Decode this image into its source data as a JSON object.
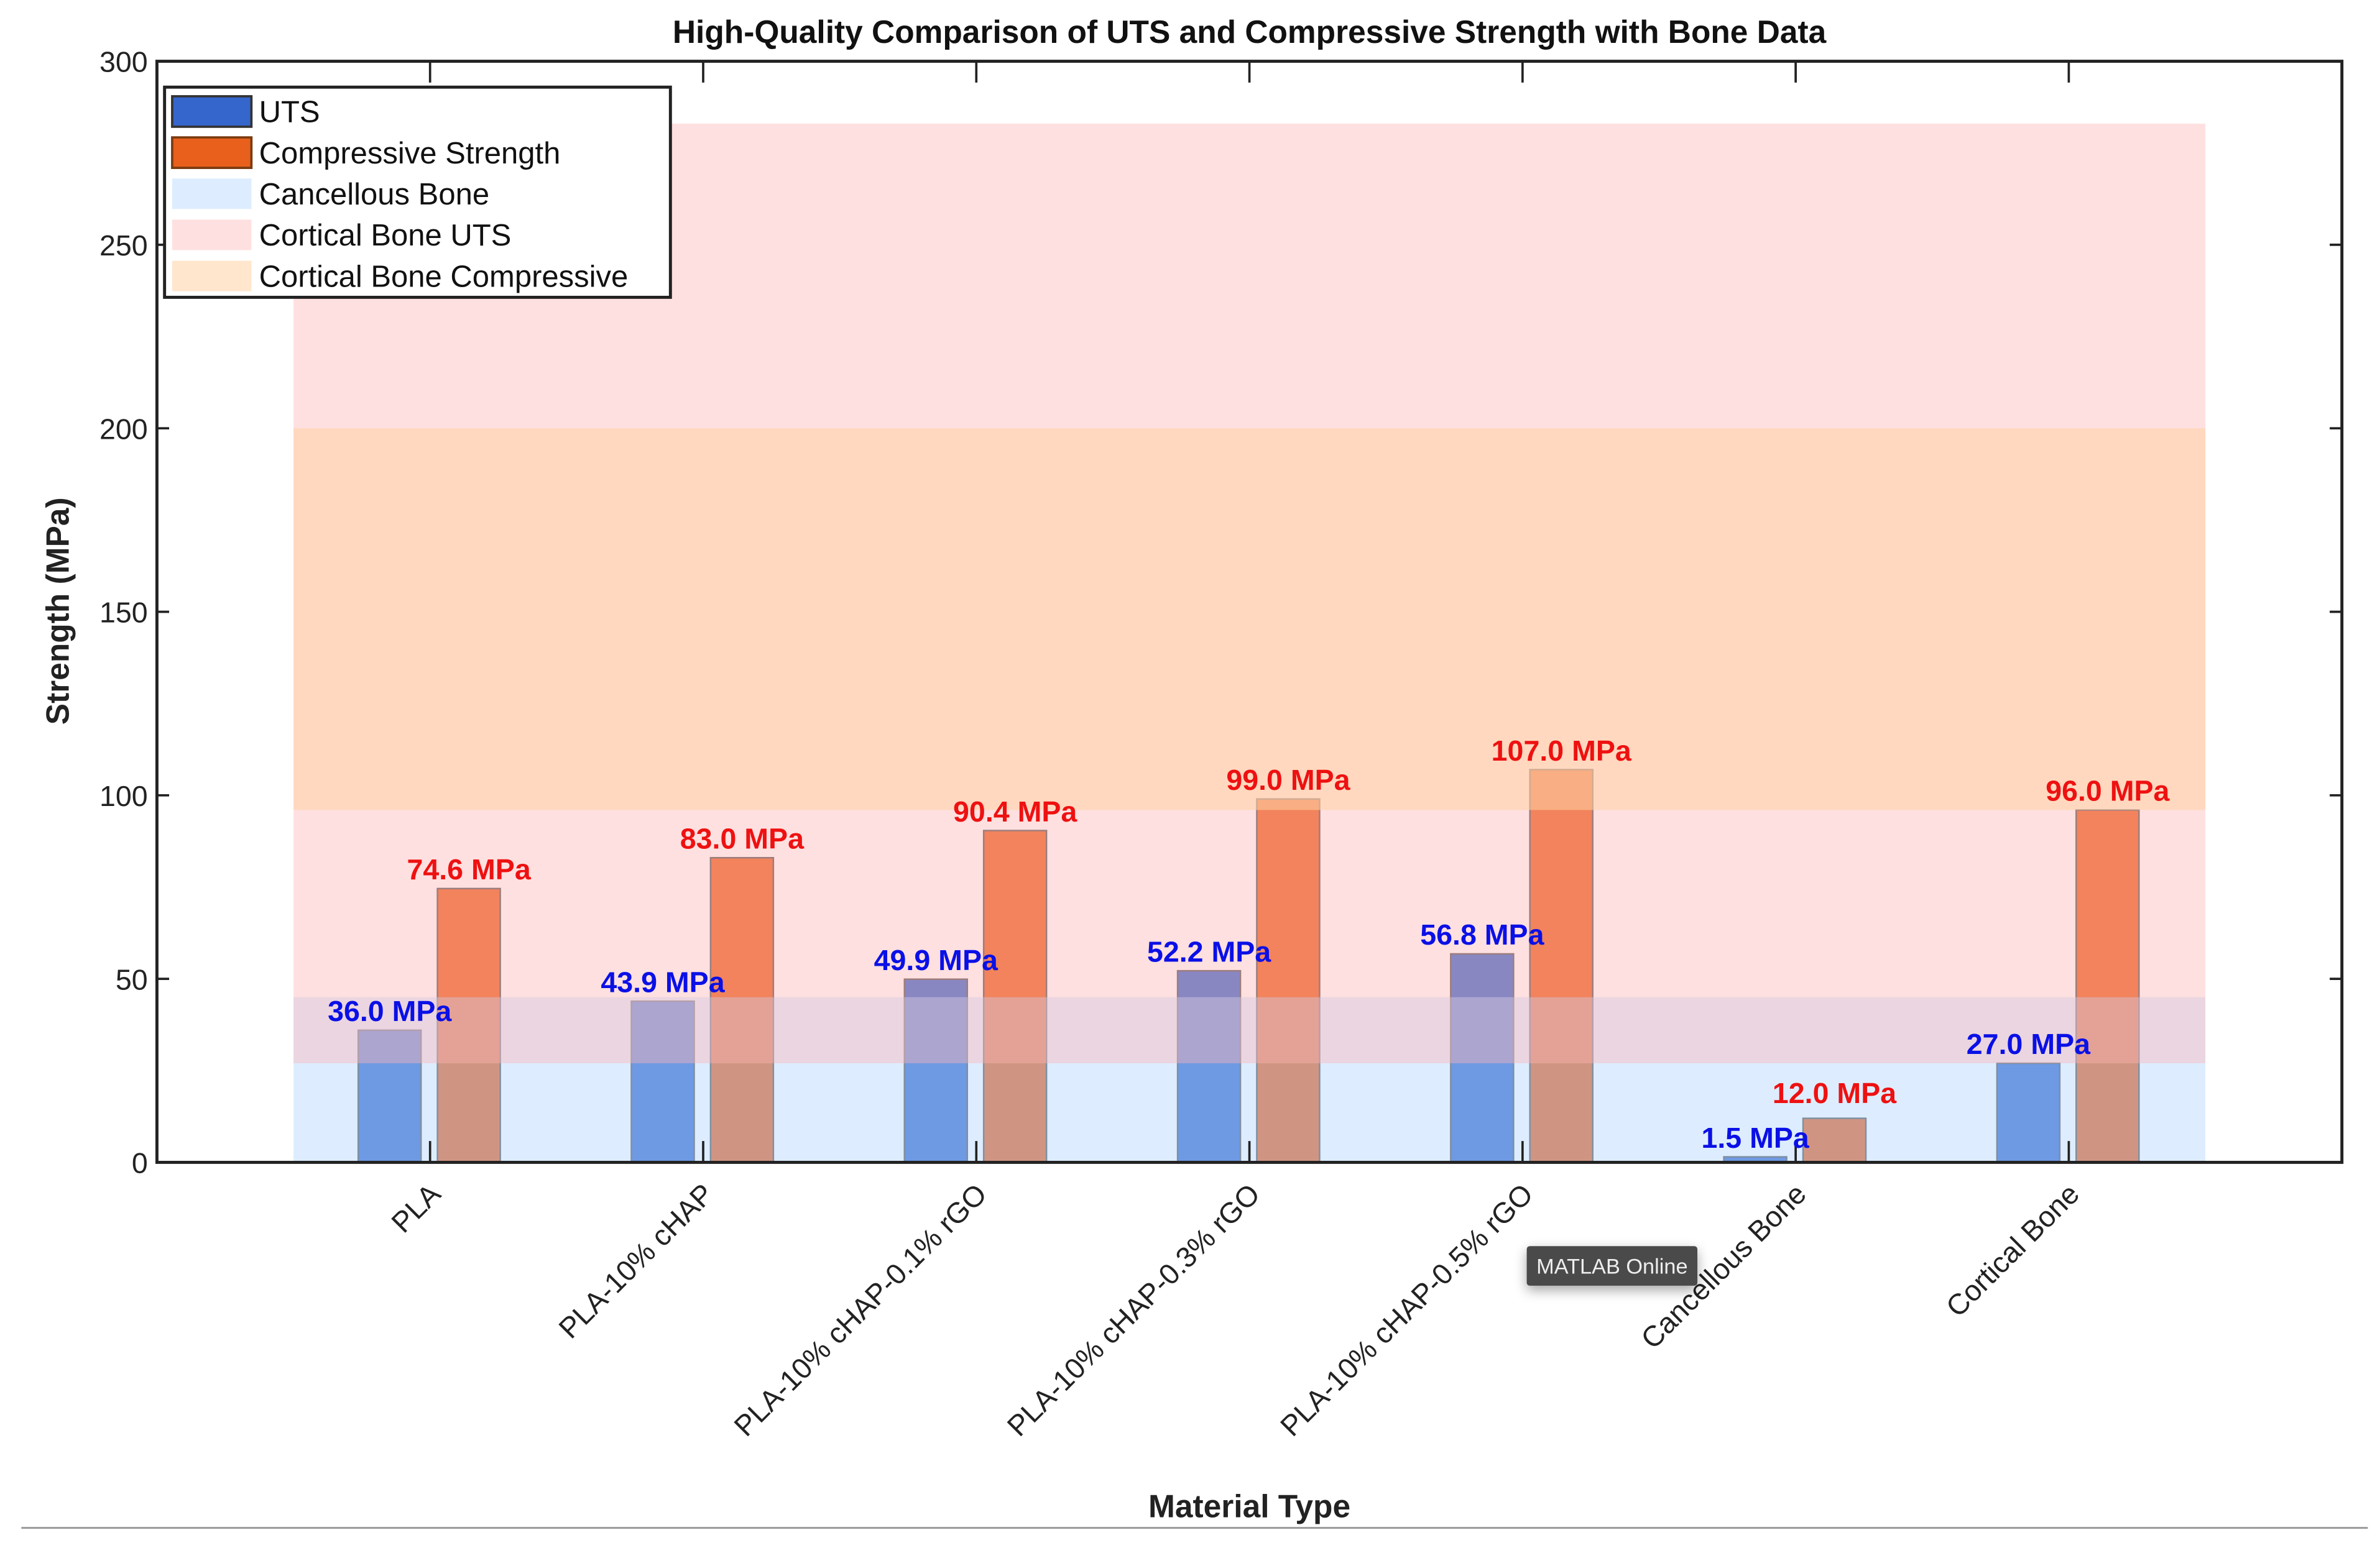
{
  "chart_data": {
    "type": "bar",
    "title": "High-Quality Comparison of UTS and Compressive Strength with Bone Data",
    "xlabel": "Material Type",
    "ylabel": "Strength (MPa)",
    "ylim": [
      0,
      300
    ],
    "yticks": [
      0,
      50,
      100,
      150,
      200,
      250,
      300
    ],
    "grid": false,
    "legend_position": "top-left",
    "categories": [
      "PLA",
      "PLA-10% cHAP",
      "PLA-10% cHAP-0.1% rGO",
      "PLA-10% cHAP-0.3% rGO",
      "PLA-10% cHAP-0.5% rGO",
      "Cancellous Bone",
      "Cortical Bone"
    ],
    "series": [
      {
        "name": "UTS",
        "color": "#3566cc",
        "label_color": "#0a10e6",
        "values": [
          36.0,
          43.9,
          49.9,
          52.2,
          56.8,
          1.5,
          27.0
        ],
        "labels": [
          "36.0 MPa",
          "43.9 MPa",
          "49.9 MPa",
          "52.2 MPa",
          "56.8 MPa",
          "1.5 MPa",
          "27.0 MPa"
        ]
      },
      {
        "name": "Compressive Strength",
        "color": "#e8601c",
        "label_color": "#ee1111",
        "values": [
          74.6,
          83.0,
          90.4,
          99.0,
          107.0,
          12.0,
          96.0
        ],
        "labels": [
          "74.6 MPa",
          "83.0 MPa",
          "90.4 MPa",
          "99.0 MPa",
          "107.0 MPa",
          "12.0 MPa",
          "96.0 MPa"
        ]
      }
    ],
    "bands": [
      {
        "name": "Cancellous Bone",
        "range": [
          0,
          45
        ],
        "color": "#b4d6ff",
        "opacity": 0.45
      },
      {
        "name": "Cortical Bone UTS",
        "range": [
          27,
          283
        ],
        "color": "#ffb4b4",
        "opacity": 0.42
      },
      {
        "name": "Cortical Bone Compressive",
        "range": [
          96,
          200
        ],
        "color": "#ffd2a4",
        "opacity": 0.55
      }
    ]
  },
  "overlay": {
    "tooltip": "MATLAB Online"
  }
}
